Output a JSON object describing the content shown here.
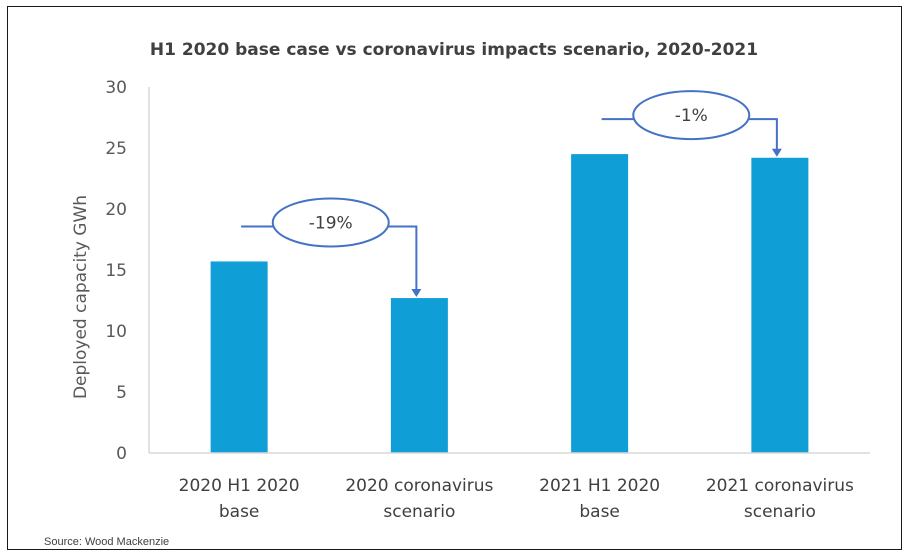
{
  "chart_data": {
    "type": "bar",
    "title": "H1 2020 base case vs coronavirus impacts scenario, 2020-2021",
    "ylabel": "Deployed capacity GWh",
    "xlabel": "",
    "ylim": [
      0,
      30
    ],
    "yticks": [
      0,
      5,
      10,
      15,
      20,
      25,
      30
    ],
    "categories": [
      [
        "2020 H1 2020",
        "base"
      ],
      [
        "2020 coronavirus",
        "scenario"
      ],
      [
        "2021 H1 2020",
        "base"
      ],
      [
        "2021 coronavirus",
        "scenario"
      ]
    ],
    "values": [
      15.7,
      12.7,
      24.5,
      24.2
    ],
    "bar_color": "#0f9ed5",
    "grid": false,
    "annotations": [
      {
        "label": "-19%",
        "from": 0,
        "to": 1
      },
      {
        "label": "-1%",
        "from": 2,
        "to": 3
      }
    ],
    "annotation_color": "#4472c4"
  },
  "source": "Source: Wood Mackenzie"
}
